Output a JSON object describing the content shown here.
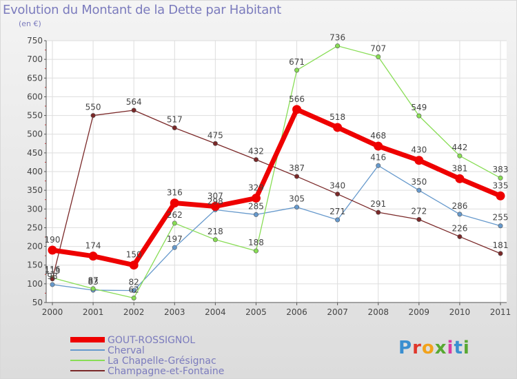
{
  "page": {
    "title": "Evolution du Montant de la Dette par Habitant",
    "unit": "(en €)"
  },
  "logo": {
    "text": "Proxiti",
    "colors": [
      "#3a8fd0",
      "#e0372b",
      "#f2a21b",
      "#58a832",
      "#d93aa2",
      "#3a8fd0",
      "#58a832"
    ]
  },
  "chart_data": {
    "type": "line",
    "title": "Evolution du Montant de la Dette par Habitant",
    "ylabel": "(en €)",
    "xlabel": "",
    "x": [
      "2000",
      "2001",
      "2002",
      "2003",
      "2004",
      "2005",
      "2006",
      "2007",
      "2008",
      "2009",
      "2010",
      "2011"
    ],
    "ylim": [
      50,
      750
    ],
    "yticks": [
      50,
      100,
      150,
      200,
      250,
      300,
      350,
      400,
      450,
      500,
      550,
      600,
      650,
      700,
      750
    ],
    "grid": true,
    "legend_position": "bottom-left",
    "series": [
      {
        "name": "GOUT-ROSSIGNOL",
        "color": "#ee0000",
        "emphasis": true,
        "values": [
          190,
          174,
          150,
          316,
          307,
          329,
          566,
          518,
          468,
          430,
          381,
          335
        ],
        "labels": [
          "190",
          "174",
          "150",
          "316",
          "307",
          "329",
          "566",
          "518",
          "468",
          "430",
          "381",
          "335"
        ]
      },
      {
        "name": "Cherval",
        "color": "#6699cc",
        "values": [
          98,
          83,
          82,
          197,
          298,
          285,
          305,
          271,
          416,
          350,
          286,
          255
        ],
        "labels": [
          "98",
          "83",
          "82",
          "197",
          "298",
          "285",
          "305",
          "271",
          "416",
          "350",
          "286",
          "255"
        ]
      },
      {
        "name": "La Chapelle-Grésignac",
        "color": "#88dd55",
        "values": [
          116,
          87,
          62,
          262,
          218,
          188,
          671,
          736,
          707,
          549,
          442,
          383
        ],
        "labels": [
          "116",
          "87",
          "62",
          "262",
          "218",
          "188",
          "671",
          "736",
          "707",
          "549",
          "442",
          "383"
        ]
      },
      {
        "name": "Champagne-et-Fontaine",
        "color": "#7a2828",
        "values": [
          113,
          550,
          564,
          517,
          475,
          432,
          387,
          340,
          291,
          272,
          226,
          181
        ],
        "labels": [
          "113",
          "550",
          "564",
          "517",
          "475",
          "432",
          "387",
          "340",
          "291",
          "272",
          "226",
          "181"
        ]
      }
    ]
  }
}
